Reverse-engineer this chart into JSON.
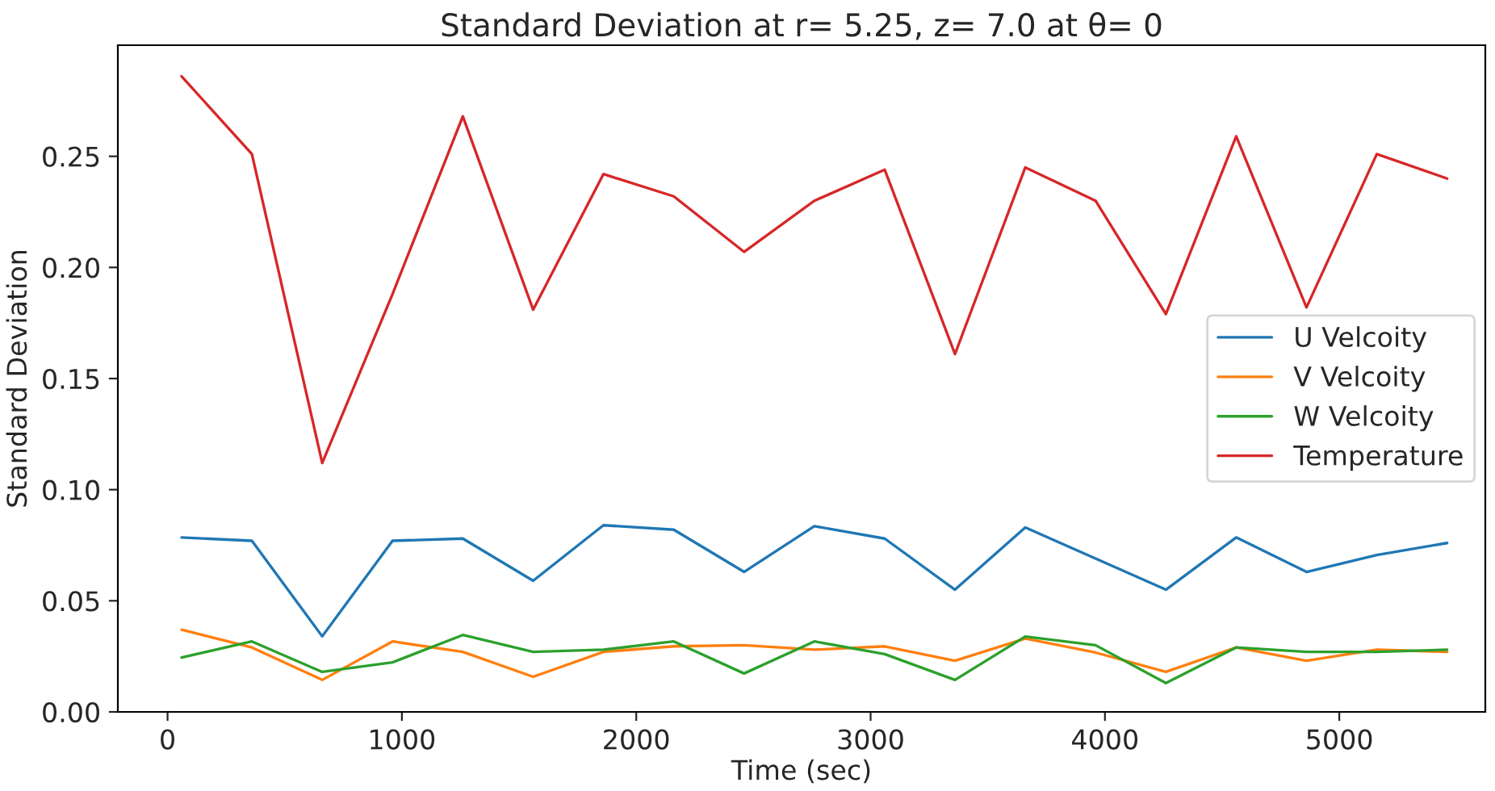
{
  "chart_data": {
    "type": "line",
    "title": "Standard Deviation at r= 5.25, z= 7.0 at θ= 0",
    "xlabel": "Time (sec)",
    "ylabel": "Standard Deviation",
    "x": [
      60,
      360,
      660,
      960,
      1260,
      1560,
      1860,
      2160,
      2460,
      2760,
      3060,
      3360,
      3660,
      3960,
      4260,
      4560,
      4860,
      5160,
      5460
    ],
    "series": [
      {
        "name": "U Velcoity",
        "color": "#1f77b4",
        "values": [
          0.0785,
          0.077,
          0.034,
          0.077,
          0.078,
          0.059,
          0.084,
          0.082,
          0.063,
          0.0836,
          0.078,
          0.055,
          0.083,
          0.069,
          0.055,
          0.0785,
          0.063,
          0.0706,
          0.076
        ]
      },
      {
        "name": "V Velcoity",
        "color": "#ff7f0e",
        "values": [
          0.037,
          0.029,
          0.0144,
          0.0317,
          0.027,
          0.0158,
          0.027,
          0.0295,
          0.03,
          0.028,
          0.0295,
          0.023,
          0.033,
          0.0267,
          0.018,
          0.029,
          0.023,
          0.028,
          0.027
        ]
      },
      {
        "name": "W Velcoity",
        "color": "#2ca02c",
        "values": [
          0.0245,
          0.0317,
          0.018,
          0.0223,
          0.0346,
          0.027,
          0.028,
          0.0317,
          0.0173,
          0.0317,
          0.026,
          0.0144,
          0.0339,
          0.03,
          0.013,
          0.029,
          0.027,
          0.027,
          0.028
        ]
      },
      {
        "name": "Temperature",
        "color": "#d62728",
        "values": [
          0.286,
          0.251,
          0.112,
          0.188,
          0.268,
          0.181,
          0.242,
          0.232,
          0.207,
          0.23,
          0.244,
          0.161,
          0.245,
          0.23,
          0.179,
          0.259,
          0.182,
          0.251,
          0.24
        ]
      }
    ],
    "xlim": [
      -212,
      5623
    ],
    "xticks": [
      0,
      1000,
      2000,
      3000,
      4000,
      5000
    ],
    "ylim": [
      0,
      0.3
    ],
    "yticks": [
      {
        "value": 0,
        "label": "0.00"
      },
      {
        "value": 0.05,
        "label": "0.05"
      },
      {
        "value": 0.1,
        "label": "0.10"
      },
      {
        "value": 0.15,
        "label": "0.15"
      },
      {
        "value": 0.2,
        "label": "0.20"
      },
      {
        "value": 0.25,
        "label": "0.25"
      }
    ],
    "legend": "right",
    "grid": false
  }
}
